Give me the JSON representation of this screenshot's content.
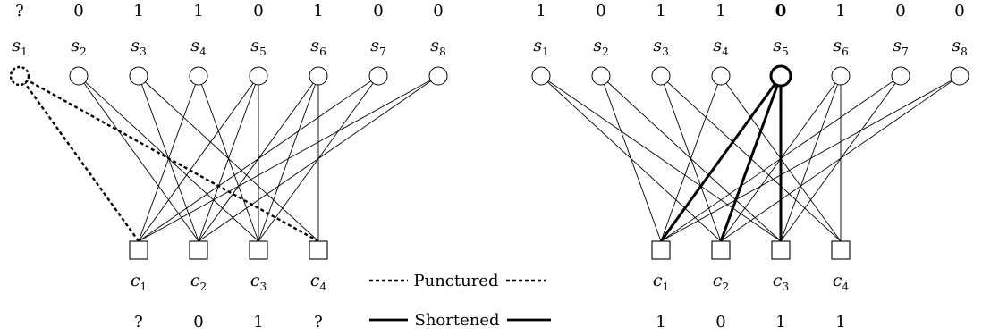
{
  "left_graph": {
    "top_values": [
      "?",
      "0",
      "1",
      "1",
      "0",
      "1",
      "0",
      "0"
    ],
    "var_nodes": [
      {
        "base": "s",
        "sub": "1",
        "style": "dashed"
      },
      {
        "base": "s",
        "sub": "2",
        "style": "normal"
      },
      {
        "base": "s",
        "sub": "3",
        "style": "normal"
      },
      {
        "base": "s",
        "sub": "4",
        "style": "normal"
      },
      {
        "base": "s",
        "sub": "5",
        "style": "normal"
      },
      {
        "base": "s",
        "sub": "6",
        "style": "normal"
      },
      {
        "base": "s",
        "sub": "7",
        "style": "normal"
      },
      {
        "base": "s",
        "sub": "8",
        "style": "normal"
      }
    ],
    "check_nodes": [
      {
        "base": "c",
        "sub": "1"
      },
      {
        "base": "c",
        "sub": "2"
      },
      {
        "base": "c",
        "sub": "3"
      },
      {
        "base": "c",
        "sub": "4"
      }
    ],
    "bottom_values": [
      "?",
      "0",
      "1",
      "?"
    ],
    "edges": [
      {
        "v": 1,
        "c": 1,
        "style": "dashed"
      },
      {
        "v": 1,
        "c": 4,
        "style": "dashed"
      },
      {
        "v": 2,
        "c": 2
      },
      {
        "v": 2,
        "c": 3
      },
      {
        "v": 3,
        "c": 2
      },
      {
        "v": 3,
        "c": 4
      },
      {
        "v": 4,
        "c": 1
      },
      {
        "v": 4,
        "c": 3
      },
      {
        "v": 5,
        "c": 1
      },
      {
        "v": 5,
        "c": 2
      },
      {
        "v": 5,
        "c": 3
      },
      {
        "v": 6,
        "c": 2
      },
      {
        "v": 6,
        "c": 3
      },
      {
        "v": 6,
        "c": 4
      },
      {
        "v": 7,
        "c": 1
      },
      {
        "v": 7,
        "c": 3
      },
      {
        "v": 8,
        "c": 1
      },
      {
        "v": 8,
        "c": 2
      }
    ]
  },
  "right_graph": {
    "top_values": [
      "1",
      "0",
      "1",
      "1",
      "0",
      "1",
      "0",
      "0"
    ],
    "bold_value_index": 4,
    "var_nodes": [
      {
        "base": "s",
        "sub": "1",
        "style": "normal"
      },
      {
        "base": "s",
        "sub": "2",
        "style": "normal"
      },
      {
        "base": "s",
        "sub": "3",
        "style": "normal"
      },
      {
        "base": "s",
        "sub": "4",
        "style": "normal"
      },
      {
        "base": "s",
        "sub": "5",
        "style": "bold"
      },
      {
        "base": "s",
        "sub": "6",
        "style": "normal"
      },
      {
        "base": "s",
        "sub": "7",
        "style": "normal"
      },
      {
        "base": "s",
        "sub": "8",
        "style": "normal"
      }
    ],
    "check_nodes": [
      {
        "base": "c",
        "sub": "1"
      },
      {
        "base": "c",
        "sub": "2"
      },
      {
        "base": "c",
        "sub": "3"
      },
      {
        "base": "c",
        "sub": "4"
      }
    ],
    "bottom_values": [
      "1",
      "0",
      "1",
      "1"
    ],
    "edges": [
      {
        "v": 1,
        "c": 2
      },
      {
        "v": 1,
        "c": 3
      },
      {
        "v": 2,
        "c": 1
      },
      {
        "v": 2,
        "c": 3
      },
      {
        "v": 3,
        "c": 2
      },
      {
        "v": 3,
        "c": 4
      },
      {
        "v": 4,
        "c": 1
      },
      {
        "v": 4,
        "c": 4
      },
      {
        "v": 5,
        "c": 1,
        "style": "bold"
      },
      {
        "v": 5,
        "c": 2,
        "style": "bold"
      },
      {
        "v": 5,
        "c": 3,
        "style": "bold"
      },
      {
        "v": 6,
        "c": 2
      },
      {
        "v": 6,
        "c": 3
      },
      {
        "v": 6,
        "c": 4
      },
      {
        "v": 7,
        "c": 1
      },
      {
        "v": 7,
        "c": 3
      },
      {
        "v": 8,
        "c": 1
      },
      {
        "v": 8,
        "c": 2
      }
    ]
  },
  "legend": {
    "punctured_label": "Punctured",
    "shortened_label": "Shortened"
  }
}
